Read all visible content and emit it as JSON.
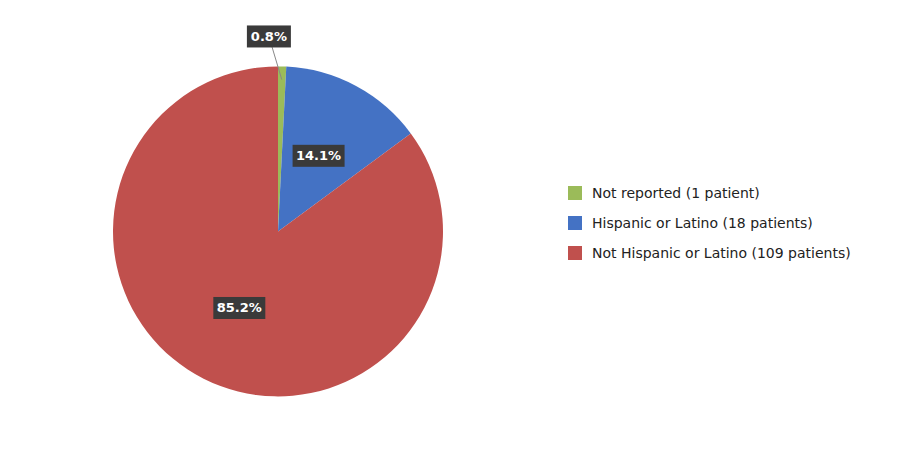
{
  "chart_data": {
    "type": "pie",
    "categories": [
      "Not reported (1 patient)",
      "Hispanic or Latino (18 patients)",
      "Not Hispanic or Latino (109 patients)"
    ],
    "values": [
      0.8,
      14.1,
      85.2
    ],
    "value_labels": [
      "0.8%",
      "14.1%",
      "85.2%"
    ],
    "colors": [
      "#9BBB59",
      "#4472C4",
      "#C0504D"
    ],
    "data_labels": true,
    "legend": "right"
  }
}
